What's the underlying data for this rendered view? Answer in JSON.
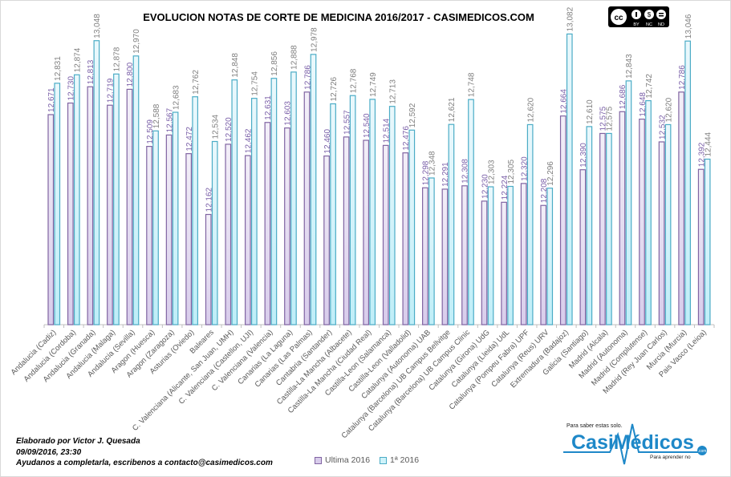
{
  "chart_data": {
    "type": "bar",
    "title": "EVOLUCION NOTAS DE CORTE DE MEDICINA 2016/2017  - CASIMEDICOS.COM",
    "ylim": [
      11.6,
      13.1
    ],
    "grid": false,
    "legend_position": "bottom",
    "categories": [
      "Andalucia (Cadiz)",
      "Andalucia (Cordoba)",
      "Andalucia (Granada)",
      "Andalucia (Malaga)",
      "Andalucia (Sevilla)",
      "Aragon (Huesca)",
      "Aragon (Zaragoza)",
      "Asturias (Oviedo)",
      "Baleares",
      "C. Valenciana (Alicante, San Juan, UMH)",
      "C. Valenciana (Castellon, UJI)",
      "C. Valenciana (Valencia)",
      "Canarias (La Laguna)",
      "Canarias (Las Palmas)",
      "Cantabria (Santander)",
      "Castilla-La Mancha (Albacete)",
      "Castilla-La Mancha (Ciudad Real)",
      "Castilla-Leon (Salamanca)",
      "Castilla-Leon (Valladolid)",
      "Catalunya (Autonoma) UAB",
      "Catalunya (Barcelona) UB Campus Bellvitge",
      "Catalunya (Barcelona) UB Campus Clinic",
      "Catalunya (Girona) UdG",
      "Catalunya (Lleida) UdL",
      "Catalunya (Pompeu Fabra) UPF",
      "Catalunya (Reus) URV",
      "Extremadura (Badajoz)",
      "Galicia (Santiago)",
      "Madrid (Alcala)",
      "Madrid (Autonoma)",
      "Madrid (Complutense)",
      "Madrid (Rey Juan Carlos)",
      "Murcia (Murcia)",
      "Pais Vasco (Leioa)"
    ],
    "series": [
      {
        "name": "Ultima 2016",
        "color": "#8064a2",
        "label_color": "#7a5fa8",
        "values": [
          12.671,
          12.73,
          12.813,
          12.719,
          12.8,
          12.509,
          12.567,
          12.472,
          12.162,
          12.52,
          12.462,
          12.631,
          12.603,
          12.786,
          12.46,
          12.557,
          12.54,
          12.514,
          12.476,
          12.298,
          12.291,
          12.308,
          12.23,
          12.224,
          12.32,
          12.208,
          12.664,
          12.39,
          12.575,
          12.686,
          12.648,
          12.532,
          12.786,
          12.392
        ]
      },
      {
        "name": "1ª 2016",
        "color": "#4bacc6",
        "label_color": "#7f7f7f",
        "values": [
          12.831,
          12.874,
          13.048,
          12.878,
          12.97,
          12.588,
          12.683,
          12.762,
          12.534,
          12.848,
          12.754,
          12.856,
          12.888,
          12.978,
          12.726,
          12.768,
          12.749,
          12.713,
          12.592,
          12.348,
          12.621,
          12.748,
          12.303,
          12.305,
          12.62,
          12.296,
          13.082,
          12.61,
          12.575,
          12.843,
          12.742,
          12.62,
          13.046,
          12.444
        ]
      }
    ]
  },
  "footer": {
    "author": "Elaborado por Victor J. Quesada",
    "datetime": "09/09/2016, 23:30",
    "note": "Ayudanos a completarla, escribenos a contacto@casimedicos.com"
  },
  "license": {
    "badge": "cc",
    "labels": [
      "BY",
      "NC",
      "ND"
    ]
  },
  "logo": {
    "name": "CasiMédicos",
    "tagline_top": "Para saber estas solo.",
    "tagline_bottom": "Para aprender no",
    "suffix": ".com",
    "color": "#1e88c8"
  }
}
